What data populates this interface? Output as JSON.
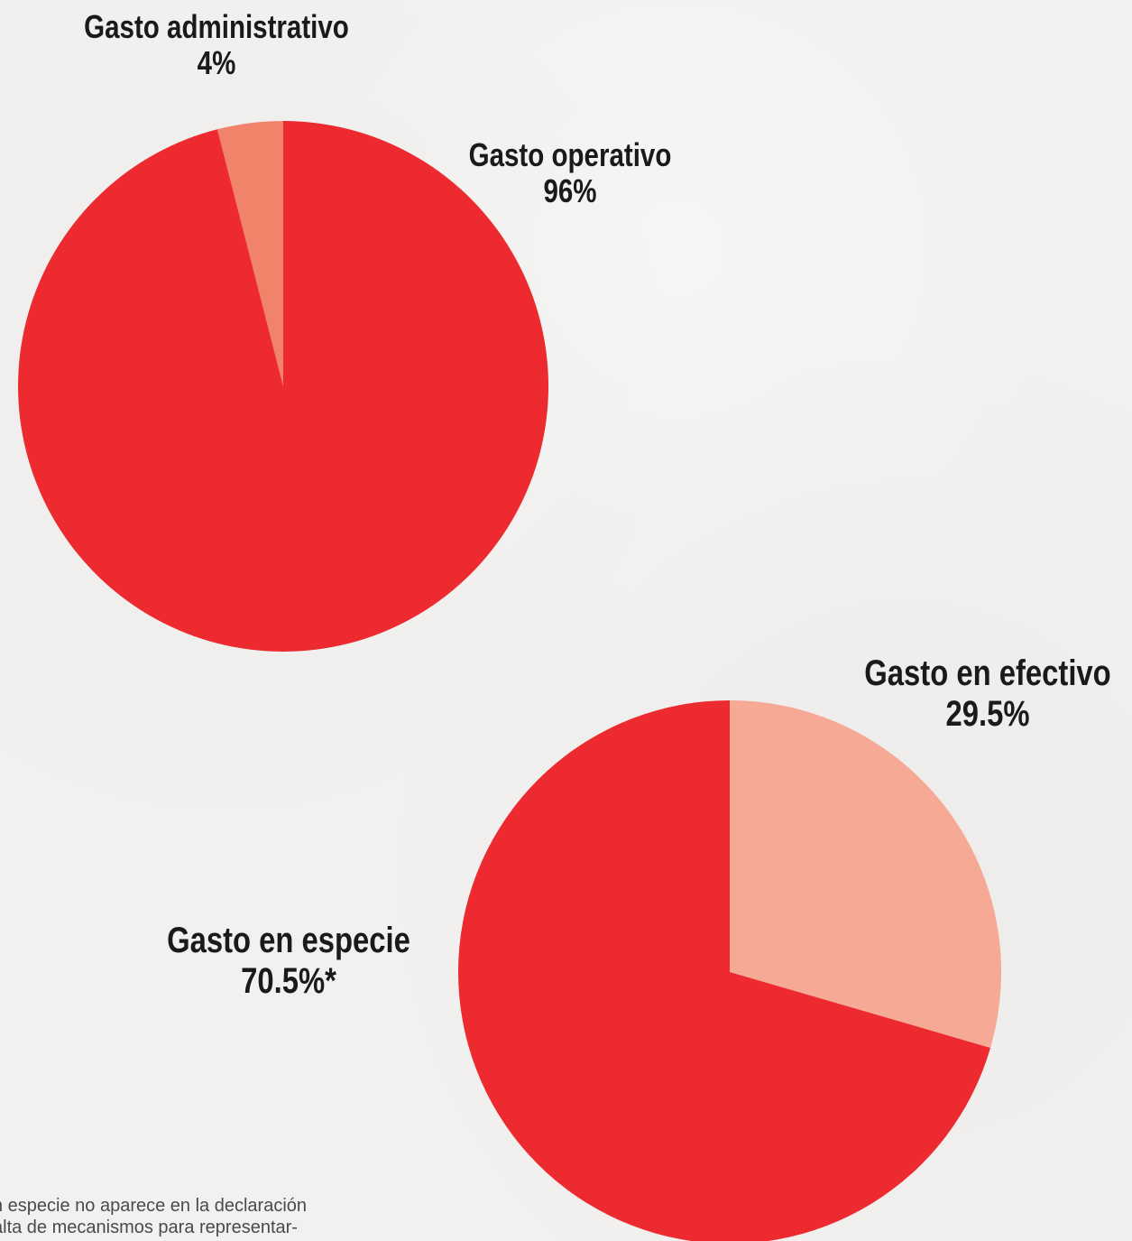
{
  "colors": {
    "main_red": "#ed2a30",
    "admin_salmon": "#f1836b",
    "efectivo_peach": "#f6aa96"
  },
  "chart_data": [
    {
      "type": "pie",
      "slices": [
        {
          "label": "Gasto operativo",
          "value": 96,
          "value_label": "96%",
          "color": "#ed2a30"
        },
        {
          "label": "Gasto administrativo",
          "value": 4,
          "value_label": "4%",
          "color": "#f1836b"
        }
      ]
    },
    {
      "type": "pie",
      "slices": [
        {
          "label": "Gasto en especie",
          "value": 70.5,
          "value_label": "70.5%*",
          "color": "#ed2a30"
        },
        {
          "label": "Gasto en efectivo",
          "value": 29.5,
          "value_label": "29.5%",
          "color": "#f6aa96"
        }
      ]
    }
  ],
  "footnote": {
    "line1": "n especie no aparece en la declaración",
    "line2": "alta de mecanismos para representar-"
  }
}
